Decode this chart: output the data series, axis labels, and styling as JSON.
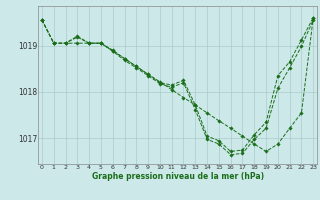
{
  "bg_color": "#cce8e8",
  "line_color": "#1a6e1a",
  "grid_color": "#aacccc",
  "xlabel": "Graphe pression niveau de la mer (hPa)",
  "ylim": [
    1016.45,
    1019.85
  ],
  "xlim": [
    -0.3,
    23.3
  ],
  "yticks": [
    1017,
    1018,
    1019
  ],
  "xticks": [
    0,
    1,
    2,
    3,
    4,
    5,
    6,
    7,
    8,
    9,
    10,
    11,
    12,
    13,
    14,
    15,
    16,
    17,
    18,
    19,
    20,
    21,
    22,
    23
  ],
  "line1": [
    1019.55,
    1019.05,
    1019.05,
    1019.05,
    1019.05,
    1019.05,
    1018.88,
    1018.72,
    1018.55,
    1018.38,
    1018.22,
    1018.05,
    1017.88,
    1017.72,
    1017.55,
    1017.38,
    1017.22,
    1017.05,
    1016.88,
    1016.72,
    1016.88,
    1017.22,
    1017.55,
    1019.6
  ],
  "line2": [
    1019.55,
    1019.05,
    1019.05,
    1019.2,
    1019.05,
    1019.05,
    1018.9,
    1018.72,
    1018.55,
    1018.38,
    1018.2,
    1018.15,
    1018.25,
    1017.72,
    1017.05,
    1016.95,
    1016.72,
    1016.75,
    1017.08,
    1017.35,
    1018.35,
    1018.65,
    1019.12,
    1019.6
  ],
  "line3": [
    1019.55,
    1019.05,
    1019.05,
    1019.18,
    1019.05,
    1019.05,
    1018.88,
    1018.68,
    1018.52,
    1018.35,
    1018.18,
    1018.1,
    1018.2,
    1017.62,
    1016.98,
    1016.88,
    1016.65,
    1016.68,
    1016.98,
    1017.22,
    1018.08,
    1018.52,
    1018.98,
    1019.55
  ]
}
